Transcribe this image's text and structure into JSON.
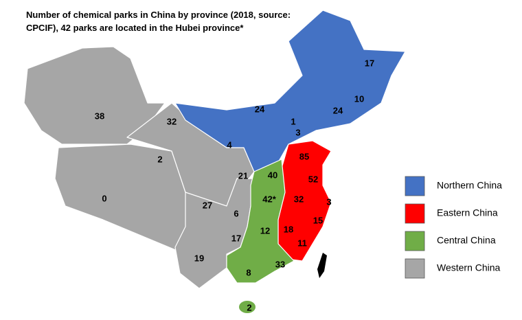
{
  "map": {
    "title": "Number of chemical parks in China by province (2018, source: CPCIF), 42 parks are located in the Hubei province*",
    "legend": [
      {
        "name": "Northern China",
        "color": "#4472c4"
      },
      {
        "name": "Eastern China",
        "color": "#ff0000"
      },
      {
        "name": "Central China",
        "color": "#70ad47"
      },
      {
        "name": "Western China",
        "color": "#a6a6a6"
      }
    ],
    "parks": [
      38,
      32,
      2,
      0,
      24,
      4,
      21,
      27,
      6,
      17,
      19,
      17,
      10,
      24,
      1,
      3,
      85,
      52,
      32,
      3,
      15,
      18,
      11,
      40,
      {
        "value": 42,
        "label": "42*"
      },
      12,
      33,
      8,
      2
    ]
  }
}
